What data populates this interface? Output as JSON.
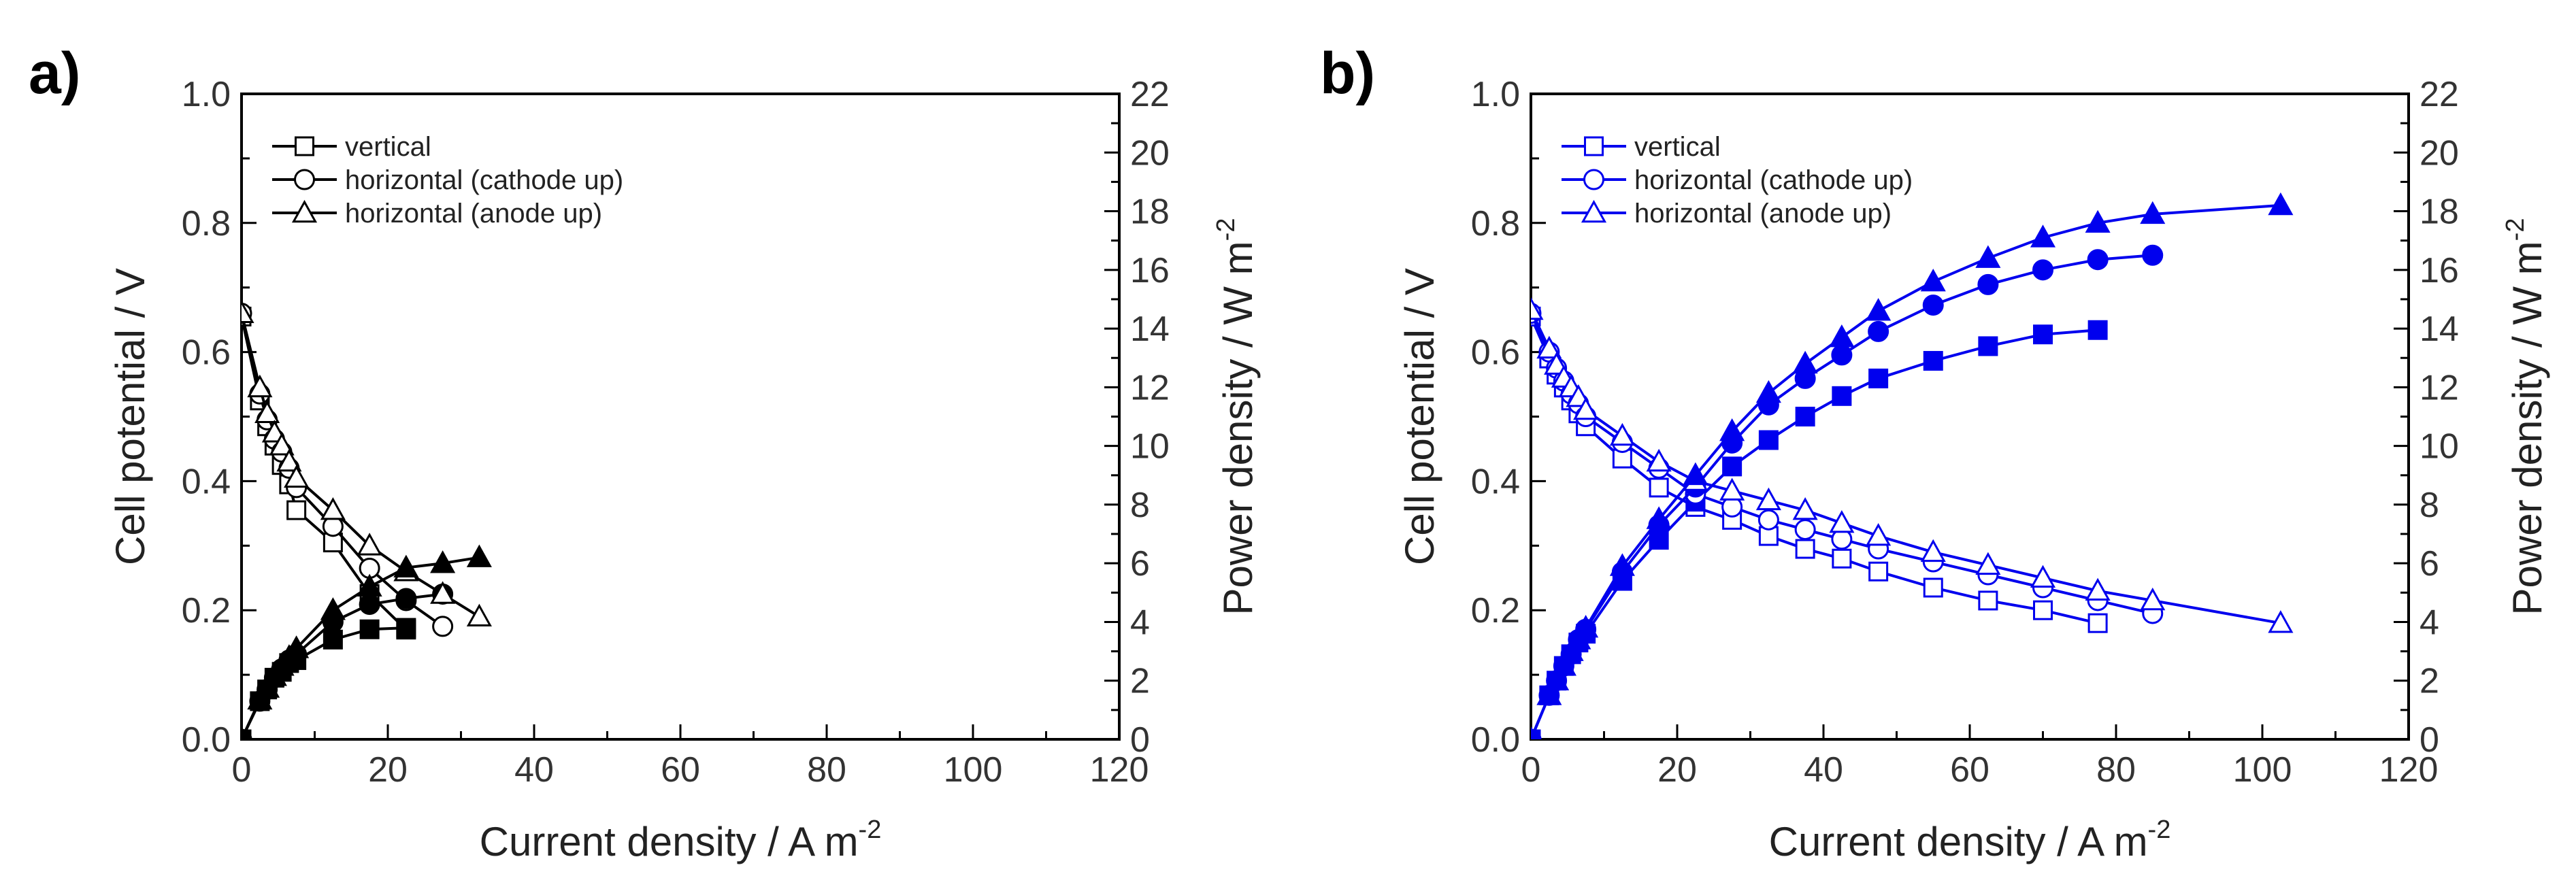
{
  "chart_data": [
    {
      "panel_label": "a)",
      "type": "line",
      "color": "#000000",
      "xlabel": "Current density / A m",
      "xlabel_sup": "-2",
      "ylabel": "Cell potential / V",
      "y2label": "Power density / W m",
      "y2label_sup": "-2",
      "xlim": [
        0,
        120
      ],
      "ylim": [
        0,
        1.0
      ],
      "y2lim": [
        0,
        22
      ],
      "xticks": [
        "0",
        "20",
        "40",
        "60",
        "80",
        "100",
        "120"
      ],
      "yticks": [
        "0.0",
        "0.2",
        "0.4",
        "0.6",
        "0.8",
        "1.0"
      ],
      "y2ticks": [
        "0",
        "2",
        "4",
        "6",
        "8",
        "10",
        "12",
        "14",
        "16",
        "18",
        "20",
        "22"
      ],
      "grid": false,
      "legend_position": "top-left",
      "series": [
        {
          "name": "vertical",
          "marker": "square",
          "x": [
            0,
            2.5,
            3.5,
            4.5,
            5.5,
            6.5,
            7.5,
            12.5,
            17.5,
            22.5
          ],
          "potential": [
            0.655,
            0.525,
            0.485,
            0.455,
            0.425,
            0.395,
            0.355,
            0.305,
            0.225,
            0.17
          ],
          "power": [
            0,
            1.3,
            1.7,
            2.1,
            2.3,
            2.6,
            2.7,
            3.4,
            3.75,
            3.8
          ]
        },
        {
          "name": "horizontal (cathode up)",
          "marker": "circle",
          "x": [
            0,
            2.5,
            3.5,
            4.5,
            5.5,
            6.5,
            7.5,
            12.5,
            17.5,
            22.5,
            27.5
          ],
          "potential": [
            0.66,
            0.535,
            0.495,
            0.465,
            0.445,
            0.42,
            0.39,
            0.33,
            0.265,
            0.215,
            0.175
          ],
          "power": [
            0,
            1.3,
            1.7,
            2.1,
            2.4,
            2.7,
            2.9,
            4.0,
            4.6,
            4.8,
            4.95
          ]
        },
        {
          "name": "horizontal (anode up)",
          "marker": "triangle",
          "x": [
            0,
            2.5,
            3.5,
            4.5,
            5.5,
            6.5,
            7.5,
            12.5,
            17.5,
            22.5,
            27.5,
            32.5
          ],
          "potential": [
            0.66,
            0.545,
            0.505,
            0.475,
            0.455,
            0.43,
            0.405,
            0.355,
            0.3,
            0.26,
            0.225,
            0.19
          ],
          "power": [
            0,
            1.35,
            1.75,
            2.15,
            2.5,
            2.8,
            3.1,
            4.4,
            5.2,
            5.85,
            6.0,
            6.2
          ]
        }
      ]
    },
    {
      "panel_label": "b)",
      "type": "line",
      "color": "#0000ee",
      "xlabel": "Current density / A m",
      "xlabel_sup": "-2",
      "ylabel": "Cell potential / V",
      "y2label": "Power density / W m",
      "y2label_sup": "-2",
      "xlim": [
        0,
        120
      ],
      "ylim": [
        0,
        1.0
      ],
      "y2lim": [
        0,
        22
      ],
      "xticks": [
        "0",
        "20",
        "40",
        "60",
        "80",
        "100",
        "120"
      ],
      "yticks": [
        "0.0",
        "0.2",
        "0.4",
        "0.6",
        "0.8",
        "1.0"
      ],
      "y2ticks": [
        "0",
        "2",
        "4",
        "6",
        "8",
        "10",
        "12",
        "14",
        "16",
        "18",
        "20",
        "22"
      ],
      "grid": false,
      "legend_position": "top-left",
      "series": [
        {
          "name": "vertical",
          "marker": "square",
          "x": [
            0,
            2.5,
            3.5,
            4.5,
            5.5,
            6.5,
            7.5,
            12.5,
            17.5,
            22.5,
            27.5,
            32.5,
            37.5,
            42.5,
            47.5,
            55,
            62.5,
            70,
            77.5
          ],
          "potential": [
            0.655,
            0.59,
            0.565,
            0.545,
            0.525,
            0.505,
            0.485,
            0.435,
            0.39,
            0.36,
            0.34,
            0.315,
            0.295,
            0.28,
            0.26,
            0.235,
            0.215,
            0.2,
            0.18
          ],
          "power": [
            0,
            1.5,
            2.0,
            2.5,
            2.9,
            3.3,
            3.6,
            5.4,
            6.8,
            8.1,
            9.3,
            10.2,
            11.0,
            11.7,
            12.3,
            12.9,
            13.4,
            13.8,
            13.95
          ]
        },
        {
          "name": "horizontal (cathode up)",
          "marker": "circle",
          "x": [
            0,
            2.5,
            3.5,
            4.5,
            5.5,
            6.5,
            7.5,
            12.5,
            17.5,
            22.5,
            27.5,
            32.5,
            37.5,
            42.5,
            47.5,
            55,
            62.5,
            70,
            77.5,
            85
          ],
          "potential": [
            0.66,
            0.6,
            0.575,
            0.555,
            0.535,
            0.52,
            0.5,
            0.46,
            0.42,
            0.38,
            0.36,
            0.34,
            0.325,
            0.31,
            0.295,
            0.275,
            0.255,
            0.235,
            0.215,
            0.195
          ],
          "power": [
            0,
            1.5,
            2.0,
            2.5,
            2.9,
            3.4,
            3.75,
            5.7,
            7.3,
            8.6,
            10.1,
            11.4,
            12.3,
            13.1,
            13.9,
            14.8,
            15.5,
            16.0,
            16.35,
            16.5
          ]
        },
        {
          "name": "horizontal (anode up)",
          "marker": "triangle",
          "x": [
            0,
            2.5,
            3.5,
            4.5,
            5.5,
            6.5,
            7.5,
            12.5,
            17.5,
            22.5,
            27.5,
            32.5,
            37.5,
            42.5,
            47.5,
            55,
            62.5,
            70,
            77.5,
            85,
            102.5
          ],
          "potential": [
            0.665,
            0.605,
            0.58,
            0.56,
            0.545,
            0.53,
            0.51,
            0.47,
            0.43,
            0.4,
            0.385,
            0.37,
            0.355,
            0.335,
            0.315,
            0.29,
            0.27,
            0.25,
            0.23,
            0.215,
            0.18
          ],
          "power": [
            0,
            1.5,
            2.0,
            2.5,
            3.0,
            3.4,
            3.8,
            5.9,
            7.5,
            9.0,
            10.5,
            11.8,
            12.8,
            13.7,
            14.6,
            15.6,
            16.4,
            17.1,
            17.6,
            17.9,
            18.2
          ]
        }
      ]
    }
  ]
}
